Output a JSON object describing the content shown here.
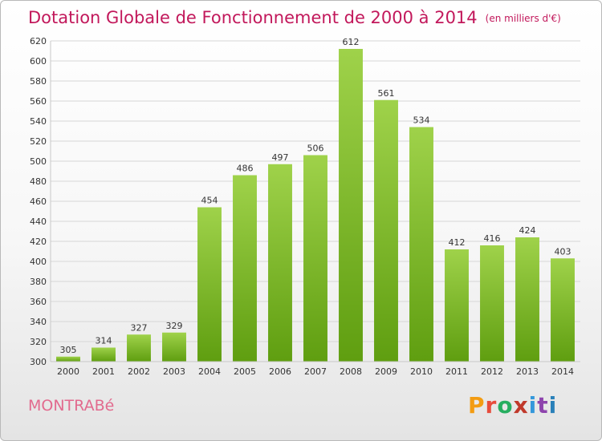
{
  "header": {
    "title": "Dotation Globale de Fonctionnement de 2000 à 2014",
    "subtitle": "(en milliers d'€)"
  },
  "footer": {
    "commune": "MONTRABé",
    "brand": "Proxiti",
    "brand_colors": [
      "#f39c12",
      "#e74c3c",
      "#27ae60",
      "#c0392b",
      "#3498db",
      "#8e44ad",
      "#2980b9"
    ]
  },
  "chart_data": {
    "type": "bar",
    "title": "Dotation Globale de Fonctionnement de 2000 à 2014",
    "subtitle": "(en milliers d'€)",
    "xlabel": "",
    "ylabel": "",
    "categories": [
      "2000",
      "2001",
      "2002",
      "2003",
      "2004",
      "2005",
      "2006",
      "2007",
      "2008",
      "2009",
      "2010",
      "2011",
      "2012",
      "2013",
      "2014"
    ],
    "values": [
      305,
      314,
      327,
      329,
      454,
      486,
      497,
      506,
      612,
      561,
      534,
      412,
      416,
      424,
      403
    ],
    "ylim": [
      300,
      620
    ],
    "yticks": [
      300,
      320,
      340,
      360,
      380,
      400,
      420,
      440,
      460,
      480,
      500,
      520,
      540,
      560,
      580,
      600,
      620
    ],
    "grid": true,
    "legend": "none",
    "bar_color_top": "#9fd24a",
    "bar_color_bottom": "#5f9e10"
  }
}
